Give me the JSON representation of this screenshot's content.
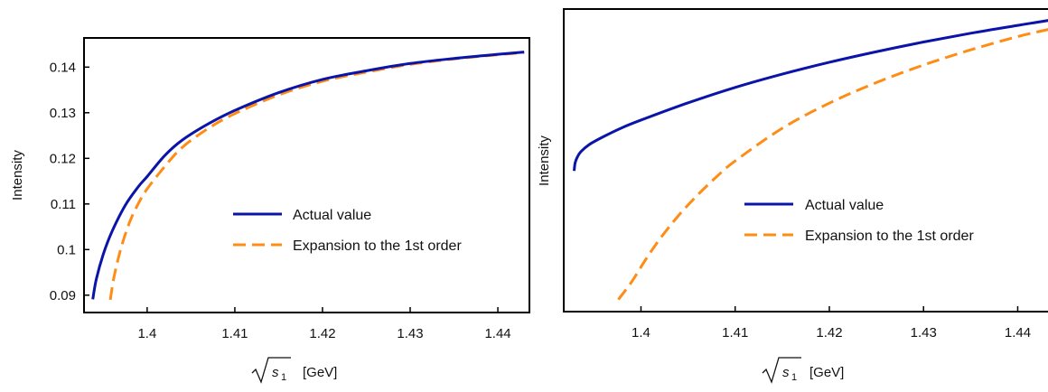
{
  "chart_data": [
    {
      "type": "line",
      "xlabel_prefix": "√",
      "xlabel_var": "s",
      "xlabel_sub": "1",
      "xlabel_unit": "[GeV]",
      "ylabel": "Intensity",
      "xlim": [
        1.3928,
        1.4436
      ],
      "ylim": [
        0.0862,
        0.1464
      ],
      "xticks": [
        "1.4",
        "1.41",
        "1.42",
        "1.43",
        "1.44"
      ],
      "xtick_values": [
        1.4,
        1.41,
        1.42,
        1.43,
        1.44
      ],
      "yticks": [
        "0.09",
        "0.1",
        "0.11",
        "0.12",
        "0.13",
        "0.14"
      ],
      "ytick_values": [
        0.09,
        0.1,
        0.11,
        0.12,
        0.13,
        0.14
      ],
      "legend": {
        "position": "center-right"
      },
      "series": [
        {
          "name": "Actual value",
          "style": "solid",
          "color": "#0a14a8",
          "x": [
            1.3938,
            1.3942,
            1.395,
            1.396,
            1.3975,
            1.399,
            1.4,
            1.402,
            1.404,
            1.407,
            1.41,
            1.415,
            1.42,
            1.425,
            1.43,
            1.435,
            1.44,
            1.443
          ],
          "y": [
            0.0891,
            0.0935,
            0.099,
            0.104,
            0.1097,
            0.1138,
            0.116,
            0.1206,
            0.124,
            0.1276,
            0.1305,
            0.1344,
            0.1373,
            0.1392,
            0.1408,
            0.1419,
            0.1428,
            0.1433
          ]
        },
        {
          "name": "Expansion to the 1st order",
          "style": "dashed",
          "color": "#ff8c14",
          "x": [
            1.3958,
            1.3962,
            1.397,
            1.398,
            1.399,
            1.4,
            1.402,
            1.404,
            1.407,
            1.41,
            1.415,
            1.42,
            1.425,
            1.43,
            1.435,
            1.44,
            1.443
          ],
          "y": [
            0.089,
            0.0938,
            0.1002,
            0.106,
            0.1101,
            0.1133,
            0.1182,
            0.1224,
            0.1266,
            0.1298,
            0.1339,
            0.1369,
            0.1389,
            0.1406,
            0.1418,
            0.1427,
            0.1432
          ]
        }
      ]
    },
    {
      "type": "line",
      "xlabel_prefix": "√",
      "xlabel_var": "s",
      "xlabel_sub": "1",
      "xlabel_unit": "[GeV]",
      "ylabel": "Intensity",
      "xlim": [
        1.3918,
        1.4436
      ],
      "ylim": [
        0.0,
        1.0
      ],
      "xticks": [
        "1.4",
        "1.41",
        "1.42",
        "1.43",
        "1.44"
      ],
      "xtick_values": [
        1.4,
        1.41,
        1.42,
        1.43,
        1.44
      ],
      "yticks": [],
      "legend": {
        "position": "center-right"
      },
      "series": [
        {
          "name": "Actual value",
          "style": "solid",
          "color": "#0a14a8",
          "x": [
            1.3929,
            1.393,
            1.3932,
            1.3936,
            1.3945,
            1.396,
            1.398,
            1.4,
            1.405,
            1.41,
            1.415,
            1.42,
            1.425,
            1.43,
            1.435,
            1.44,
            1.4436
          ],
          "y": [
            0.465,
            0.49,
            0.508,
            0.528,
            0.552,
            0.578,
            0.608,
            0.633,
            0.69,
            0.741,
            0.785,
            0.824,
            0.859,
            0.891,
            0.92,
            0.946,
            0.964
          ]
        },
        {
          "name": "Expansion to the 1st order",
          "style": "dashed",
          "color": "#ff8c14",
          "x": [
            1.3976,
            1.399,
            1.4005,
            1.402,
            1.404,
            1.406,
            1.408,
            1.41,
            1.415,
            1.42,
            1.425,
            1.43,
            1.435,
            1.44,
            1.4436
          ],
          "y": [
            0.04,
            0.098,
            0.172,
            0.24,
            0.318,
            0.385,
            0.445,
            0.498,
            0.606,
            0.689,
            0.757,
            0.815,
            0.865,
            0.909,
            0.935
          ]
        }
      ]
    }
  ]
}
